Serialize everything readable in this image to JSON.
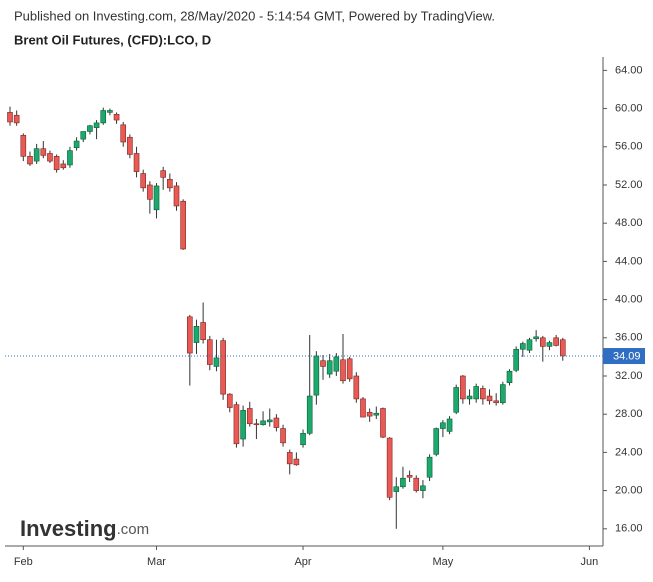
{
  "chart_data": {
    "type": "candlestick",
    "published": "Published on Investing.com, 28/May/2020 - 5:14:54 GMT, Powered by TradingView.",
    "title": "Brent Oil Futures, (CFD):LCO, D",
    "logo": [
      "Investing",
      ".com"
    ],
    "categories": [
      null,
      null,
      "Feb",
      null,
      null,
      null,
      null,
      null,
      null,
      null,
      null,
      null,
      null,
      null,
      null,
      null,
      null,
      null,
      null,
      null,
      null,
      null,
      "Mar",
      null,
      null,
      null,
      null,
      null,
      null,
      null,
      null,
      null,
      null,
      null,
      null,
      null,
      null,
      null,
      null,
      null,
      null,
      null,
      null,
      null,
      "Apr",
      null,
      null,
      null,
      null,
      null,
      null,
      null,
      null,
      null,
      null,
      null,
      null,
      null,
      null,
      null,
      null,
      null,
      null,
      null,
      null,
      "May",
      null,
      null,
      null,
      null,
      null,
      null,
      null,
      null,
      null,
      null,
      null,
      null,
      null,
      null,
      null,
      null,
      null,
      null,
      null,
      null,
      null,
      "Jun"
    ],
    "open": [
      59.6,
      59.3,
      57.2,
      55.0,
      54.5,
      55.8,
      55.3,
      55.0,
      54.2,
      54.1,
      55.9,
      56.8,
      57.6,
      58.0,
      58.5,
      59.6,
      59.4,
      58.3,
      57.0,
      55.3,
      53.2,
      52.0,
      49.4,
      53.5,
      52.6,
      51.9,
      50.3,
      38.2,
      35.5,
      37.6,
      35.8,
      33.0,
      35.7,
      30.1,
      29.0,
      25.4,
      28.6,
      27.0,
      26.9,
      27.2,
      27.6,
      26.5,
      24.0,
      23.3,
      24.8,
      26.0,
      30.0,
      33.6,
      32.2,
      32.5,
      33.7,
      33.8,
      32.0,
      29.6,
      28.2,
      27.9,
      28.6,
      25.5,
      19.9,
      20.4,
      21.6,
      21.3,
      20.0,
      21.4,
      23.8,
      26.5,
      26.2,
      28.2,
      32.0,
      29.6,
      29.6,
      30.7,
      29.9,
      29.4,
      29.2,
      31.3,
      32.6,
      34.8,
      34.7,
      35.9,
      36.0,
      35.1,
      36.0,
      35.8,
      null,
      null,
      null,
      null
    ],
    "high": [
      60.2,
      59.8,
      57.4,
      55.5,
      56.3,
      56.6,
      55.6,
      55.2,
      54.6,
      56.0,
      57.0,
      57.6,
      58.3,
      58.8,
      60.1,
      60.0,
      59.6,
      58.6,
      57.3,
      56.0,
      53.6,
      52.4,
      52.2,
      53.9,
      53.2,
      52.3,
      50.5,
      38.4,
      37.9,
      39.7,
      36.2,
      35.8,
      36.0,
      30.2,
      29.3,
      28.9,
      29.3,
      27.5,
      28.3,
      28.6,
      28.0,
      26.9,
      24.3,
      24.0,
      26.4,
      36.3,
      34.6,
      34.2,
      34.3,
      34.4,
      36.4,
      34.0,
      32.4,
      29.8,
      28.6,
      28.8,
      28.7,
      25.6,
      21.4,
      22.5,
      22.1,
      21.6,
      21.1,
      23.8,
      26.6,
      27.4,
      27.8,
      31.1,
      32.1,
      30.6,
      31.2,
      31.0,
      30.6,
      30.2,
      31.4,
      32.7,
      35.1,
      35.6,
      36.0,
      36.8,
      36.2,
      35.7,
      36.3,
      36.0,
      null,
      null,
      null,
      null
    ],
    "low": [
      58.2,
      58.2,
      54.5,
      54.0,
      54.2,
      54.8,
      54.3,
      53.3,
      53.6,
      53.8,
      55.6,
      56.5,
      57.3,
      56.8,
      58.3,
      59.3,
      58.4,
      56.0,
      54.8,
      52.8,
      51.3,
      49.0,
      48.5,
      51.5,
      51.3,
      49.3,
      45.2,
      31.0,
      34.3,
      35.4,
      32.6,
      32.5,
      29.5,
      28.2,
      24.5,
      24.6,
      26.7,
      25.4,
      26.8,
      26.7,
      26.2,
      24.6,
      21.7,
      22.6,
      24.5,
      25.8,
      29.0,
      31.6,
      31.8,
      32.0,
      31.2,
      31.4,
      29.2,
      27.7,
      27.2,
      27.5,
      25.5,
      19.0,
      16.0,
      20.2,
      20.9,
      19.8,
      19.2,
      21.0,
      23.6,
      25.6,
      25.9,
      28.0,
      29.1,
      29.0,
      29.2,
      29.0,
      29.0,
      28.9,
      29.0,
      31.0,
      32.4,
      34.0,
      34.4,
      35.6,
      33.5,
      34.7,
      35.1,
      33.6,
      null,
      null,
      null,
      null
    ],
    "close": [
      58.6,
      58.5,
      55.0,
      54.2,
      55.8,
      55.1,
      54.5,
      53.6,
      53.8,
      55.6,
      56.6,
      57.6,
      58.2,
      58.5,
      59.8,
      59.8,
      58.8,
      56.5,
      55.2,
      53.4,
      51.7,
      50.5,
      51.9,
      52.8,
      51.7,
      49.8,
      45.3,
      34.4,
      37.2,
      35.8,
      33.2,
      33.9,
      30.1,
      28.7,
      24.9,
      28.4,
      27.0,
      26.9,
      27.3,
      27.4,
      26.6,
      25.0,
      22.8,
      22.7,
      26.0,
      29.9,
      34.1,
      33.0,
      33.6,
      34.0,
      31.5,
      31.7,
      29.6,
      27.7,
      27.8,
      28.1,
      25.6,
      19.3,
      20.4,
      21.3,
      21.4,
      20.0,
      20.5,
      23.5,
      26.5,
      27.1,
      27.5,
      30.8,
      29.6,
      29.9,
      30.9,
      29.6,
      29.4,
      29.2,
      31.1,
      32.5,
      34.8,
      35.4,
      35.8,
      36.1,
      35.1,
      35.5,
      35.2,
      34.1,
      null,
      null,
      null,
      null
    ],
    "up_color": "#1ba96c",
    "down_color": "#ea5a55",
    "last_price": 34.09,
    "last_price_label": "34.09",
    "last_price_color": "#2f6ec2",
    "ylim": [
      14.2,
      65.4
    ],
    "yticks": [
      {
        "value": 16,
        "label": "16.00"
      },
      {
        "value": 20,
        "label": "20.00"
      },
      {
        "value": 24,
        "label": "24.00"
      },
      {
        "value": 28,
        "label": "28.00"
      },
      {
        "value": 32,
        "label": "32.00"
      },
      {
        "value": 36,
        "label": "36.00"
      },
      {
        "value": 40,
        "label": "40.00"
      },
      {
        "value": 44,
        "label": "44.00"
      },
      {
        "value": 48,
        "label": "48.00"
      },
      {
        "value": 52,
        "label": "52.00"
      },
      {
        "value": 56,
        "label": "56.00"
      },
      {
        "value": 60,
        "label": "60.00"
      },
      {
        "value": 64,
        "label": "64.00"
      }
    ]
  }
}
